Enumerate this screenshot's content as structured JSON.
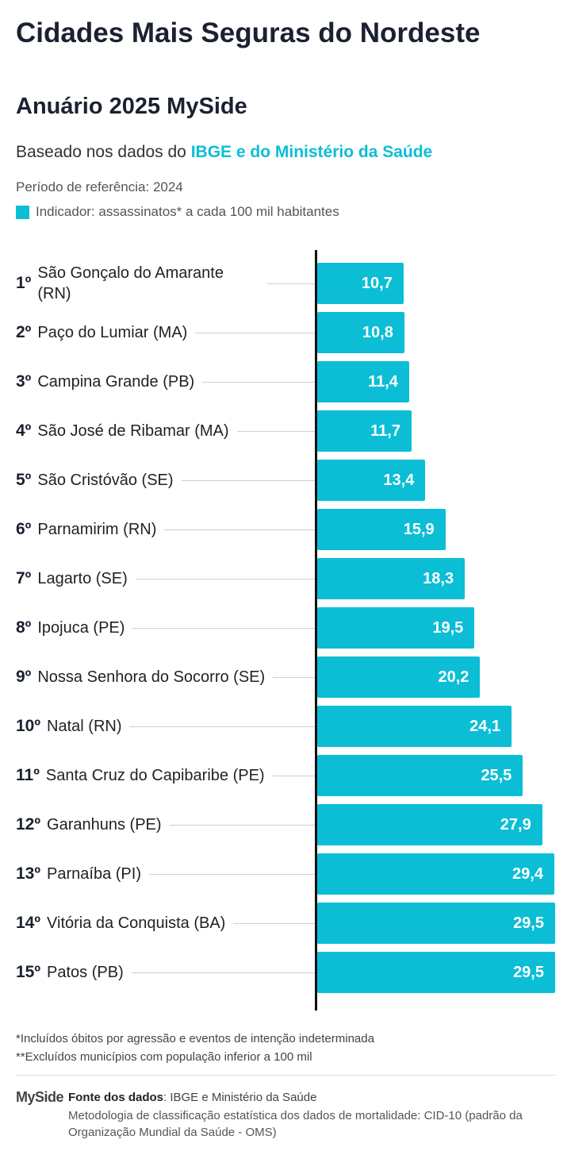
{
  "chart_data": {
    "type": "bar",
    "orientation": "horizontal",
    "title": "Cidades Mais Seguras do Nordeste",
    "subtitle": "Anuário 2025 MySide",
    "basis_prefix": "Baseado nos dados do",
    "basis_highlight": "IBGE e do Ministério da Saúde",
    "period": "Período de referência: 2024",
    "legend_label": "Indicador: assassinatos* a cada 100 mil habitantes",
    "color": "#0bbed6",
    "ranks": [
      "1º",
      "2º",
      "3º",
      "4º",
      "5º",
      "6º",
      "7º",
      "8º",
      "9º",
      "10º",
      "11º",
      "12º",
      "13º",
      "14º",
      "15º"
    ],
    "categories": [
      "São Gonçalo do Amarante (RN)",
      "Paço do Lumiar (MA)",
      "Campina Grande (PB)",
      "São José de Ribamar (MA)",
      "São Cristóvão (SE)",
      "Parnamirim (RN)",
      "Lagarto (SE)",
      "Ipojuca (PE)",
      "Nossa Senhora do Socorro (SE)",
      "Natal (RN)",
      "Santa Cruz do Capibaribe (PE)",
      "Garanhuns (PE)",
      "Parnaíba (PI)",
      "Vitória da Conquista (BA)",
      "Patos (PB)"
    ],
    "values": [
      10.7,
      10.8,
      11.4,
      11.7,
      13.4,
      15.9,
      18.3,
      19.5,
      20.2,
      24.1,
      25.5,
      27.9,
      29.4,
      29.5,
      29.5
    ],
    "value_labels": [
      "10,7",
      "10,8",
      "11,4",
      "11,7",
      "13,4",
      "15,9",
      "18,3",
      "19,5",
      "20,2",
      "24,1",
      "25,5",
      "27,9",
      "29,4",
      "29,5",
      "29,5"
    ],
    "footnotes": [
      "*Incluídos óbitos por agressão e eventos de intenção indeterminada",
      "**Excluídos municípios com população inferior a 100 mil"
    ],
    "footer": {
      "logo": "MySide",
      "source_label": "Fonte dos dados",
      "source_text": ": IBGE e Ministério da Saúde",
      "methodology": "Metodologia de classificação estatística dos dados de mortalidade: CID-10 (padrão da Organização Mundial da Saúde - OMS)"
    }
  }
}
